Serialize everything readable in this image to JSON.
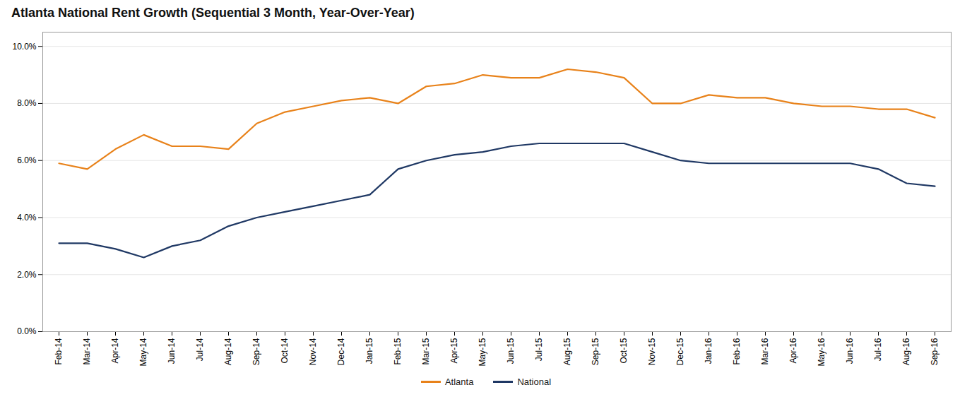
{
  "chart_data": {
    "type": "line",
    "title": "Atlanta National Rent Growth (Sequential 3 Month, Year-Over-Year)",
    "categories": [
      "Feb-14",
      "Mar-14",
      "Apr-14",
      "May-14",
      "Jun-14",
      "Jul-14",
      "Aug-14",
      "Sep-14",
      "Oct-14",
      "Nov-14",
      "Dec-14",
      "Jan-15",
      "Feb-15",
      "Mar-15",
      "Apr-15",
      "May-15",
      "Jun-15",
      "Jul-15",
      "Aug-15",
      "Sep-15",
      "Oct-15",
      "Nov-15",
      "Dec-15",
      "Jan-16",
      "Feb-16",
      "Mar-16",
      "Apr-16",
      "May-16",
      "Jun-16",
      "Jul-16",
      "Aug-16",
      "Sep-16"
    ],
    "series": [
      {
        "name": "Atlanta",
        "color": "#E8821A",
        "values": [
          0.059,
          0.057,
          0.064,
          0.069,
          0.065,
          0.065,
          0.064,
          0.073,
          0.077,
          0.079,
          0.081,
          0.082,
          0.08,
          0.086,
          0.087,
          0.09,
          0.089,
          0.089,
          0.092,
          0.091,
          0.089,
          0.08,
          0.08,
          0.083,
          0.082,
          0.082,
          0.08,
          0.079,
          0.079,
          0.078,
          0.078,
          0.075
        ]
      },
      {
        "name": "National",
        "color": "#1F3864",
        "values": [
          0.031,
          0.031,
          0.029,
          0.026,
          0.03,
          0.032,
          0.037,
          0.04,
          0.042,
          0.044,
          0.046,
          0.048,
          0.057,
          0.06,
          0.062,
          0.063,
          0.065,
          0.066,
          0.066,
          0.066,
          0.066,
          0.063,
          0.06,
          0.059,
          0.059,
          0.059,
          0.059,
          0.059,
          0.059,
          0.057,
          0.052,
          0.051
        ]
      }
    ],
    "ylim": [
      0.0,
      0.105
    ],
    "yticks": [
      {
        "value": 0.0,
        "label": "0.0%"
      },
      {
        "value": 0.02,
        "label": "2.0%"
      },
      {
        "value": 0.04,
        "label": "4.0%"
      },
      {
        "value": 0.06,
        "label": "6.0%"
      },
      {
        "value": 0.08,
        "label": "8.0%"
      },
      {
        "value": 0.1,
        "label": "10.0%"
      }
    ],
    "grid": true,
    "legend": "bottom"
  }
}
